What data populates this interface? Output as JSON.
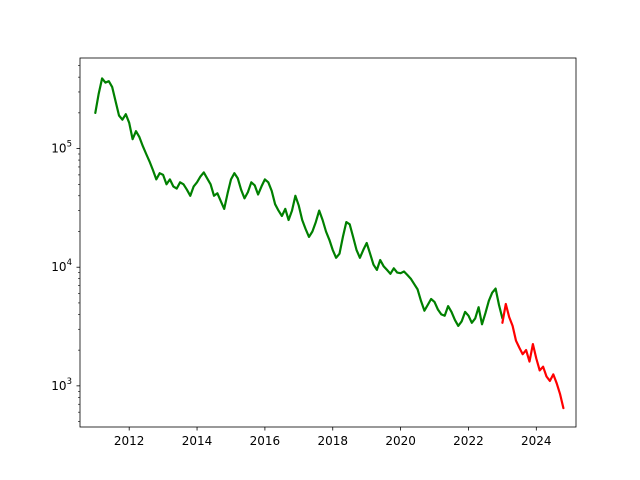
{
  "chart_data": {
    "type": "line",
    "title": "",
    "xlabel": "",
    "ylabel": "",
    "y_scale": "log",
    "xlim": [
      2010.55,
      2025.17
    ],
    "ylim": [
      450,
      580000
    ],
    "grid": false,
    "x_ticks": [
      2012,
      2014,
      2016,
      2018,
      2020,
      2022,
      2024
    ],
    "x_tick_labels": [
      "2012",
      "2014",
      "2016",
      "2018",
      "2020",
      "2022",
      "2024"
    ],
    "y_ticks": [
      1000,
      10000,
      100000
    ],
    "y_tick_labels": [
      {
        "base": "10",
        "exp": "3"
      },
      {
        "base": "10",
        "exp": "4"
      },
      {
        "base": "10",
        "exp": "5"
      }
    ],
    "series": [
      {
        "color": "#008000",
        "x": [
          2011.0,
          2011.1,
          2011.2,
          2011.3,
          2011.4,
          2011.5,
          2011.6,
          2011.7,
          2011.8,
          2011.9,
          2012.0,
          2012.1,
          2012.2,
          2012.3,
          2012.4,
          2012.5,
          2012.6,
          2012.7,
          2012.8,
          2012.9,
          2013.0,
          2013.1,
          2013.2,
          2013.3,
          2013.4,
          2013.5,
          2013.6,
          2013.7,
          2013.8,
          2013.9,
          2014.0,
          2014.1,
          2014.2,
          2014.3,
          2014.4,
          2014.5,
          2014.6,
          2014.7,
          2014.8,
          2014.9,
          2015.0,
          2015.1,
          2015.2,
          2015.3,
          2015.4,
          2015.5,
          2015.6,
          2015.7,
          2015.8,
          2015.9,
          2016.0,
          2016.1,
          2016.2,
          2016.3,
          2016.4,
          2016.5,
          2016.6,
          2016.7,
          2016.8,
          2016.9,
          2017.0,
          2017.1,
          2017.2,
          2017.3,
          2017.4,
          2017.5,
          2017.6,
          2017.7,
          2017.8,
          2017.9,
          2018.0,
          2018.1,
          2018.2,
          2018.3,
          2018.4,
          2018.5,
          2018.6,
          2018.7,
          2018.8,
          2018.9,
          2019.0,
          2019.1,
          2019.2,
          2019.3,
          2019.4,
          2019.5,
          2019.6,
          2019.7,
          2019.8,
          2019.9,
          2020.0,
          2020.1,
          2020.2,
          2020.3,
          2020.4,
          2020.5,
          2020.6,
          2020.7,
          2020.8,
          2020.9,
          2021.0,
          2021.1,
          2021.2,
          2021.3,
          2021.4,
          2021.5,
          2021.6,
          2021.7,
          2021.8,
          2021.9,
          2022.0,
          2022.1,
          2022.2,
          2022.3,
          2022.4,
          2022.5,
          2022.6,
          2022.7,
          2022.8,
          2022.9,
          2023.0
        ],
        "y": [
          200000,
          290000,
          390000,
          360000,
          370000,
          330000,
          250000,
          190000,
          175000,
          195000,
          165000,
          120000,
          140000,
          125000,
          105000,
          90000,
          78000,
          66000,
          55000,
          62000,
          60000,
          50000,
          55000,
          48000,
          46000,
          52000,
          50000,
          45000,
          40000,
          48000,
          52000,
          58000,
          63000,
          56000,
          50000,
          40000,
          42000,
          36000,
          31000,
          42000,
          55000,
          62000,
          56000,
          45000,
          38000,
          43000,
          52000,
          49000,
          41000,
          48000,
          55000,
          52000,
          44000,
          34000,
          30000,
          27000,
          31000,
          25000,
          30000,
          40000,
          33000,
          25000,
          21000,
          18000,
          20000,
          24000,
          30000,
          25000,
          20000,
          17000,
          14000,
          12000,
          13000,
          18000,
          24000,
          23000,
          18000,
          14000,
          12000,
          14000,
          16000,
          13000,
          10500,
          9500,
          11500,
          10200,
          9500,
          8800,
          9800,
          9000,
          8900,
          9200,
          8600,
          8000,
          7200,
          6500,
          5200,
          4300,
          4800,
          5400,
          5100,
          4400,
          4000,
          3900,
          4700,
          4200,
          3600,
          3200,
          3500,
          4200,
          3900,
          3400,
          3700,
          4600,
          3300,
          4100,
          5200,
          6100,
          6600,
          4800,
          3700
        ]
      },
      {
        "color": "#ff0000",
        "x": [
          2023.0,
          2023.1,
          2023.2,
          2023.3,
          2023.4,
          2023.5,
          2023.6,
          2023.7,
          2023.8,
          2023.9,
          2024.0,
          2024.1,
          2024.2,
          2024.3,
          2024.4,
          2024.5,
          2024.6,
          2024.7,
          2024.8
        ],
        "y": [
          3400,
          4900,
          3800,
          3200,
          2400,
          2100,
          1850,
          2000,
          1600,
          2250,
          1700,
          1350,
          1450,
          1200,
          1100,
          1250,
          1050,
          850,
          650
        ]
      }
    ]
  }
}
